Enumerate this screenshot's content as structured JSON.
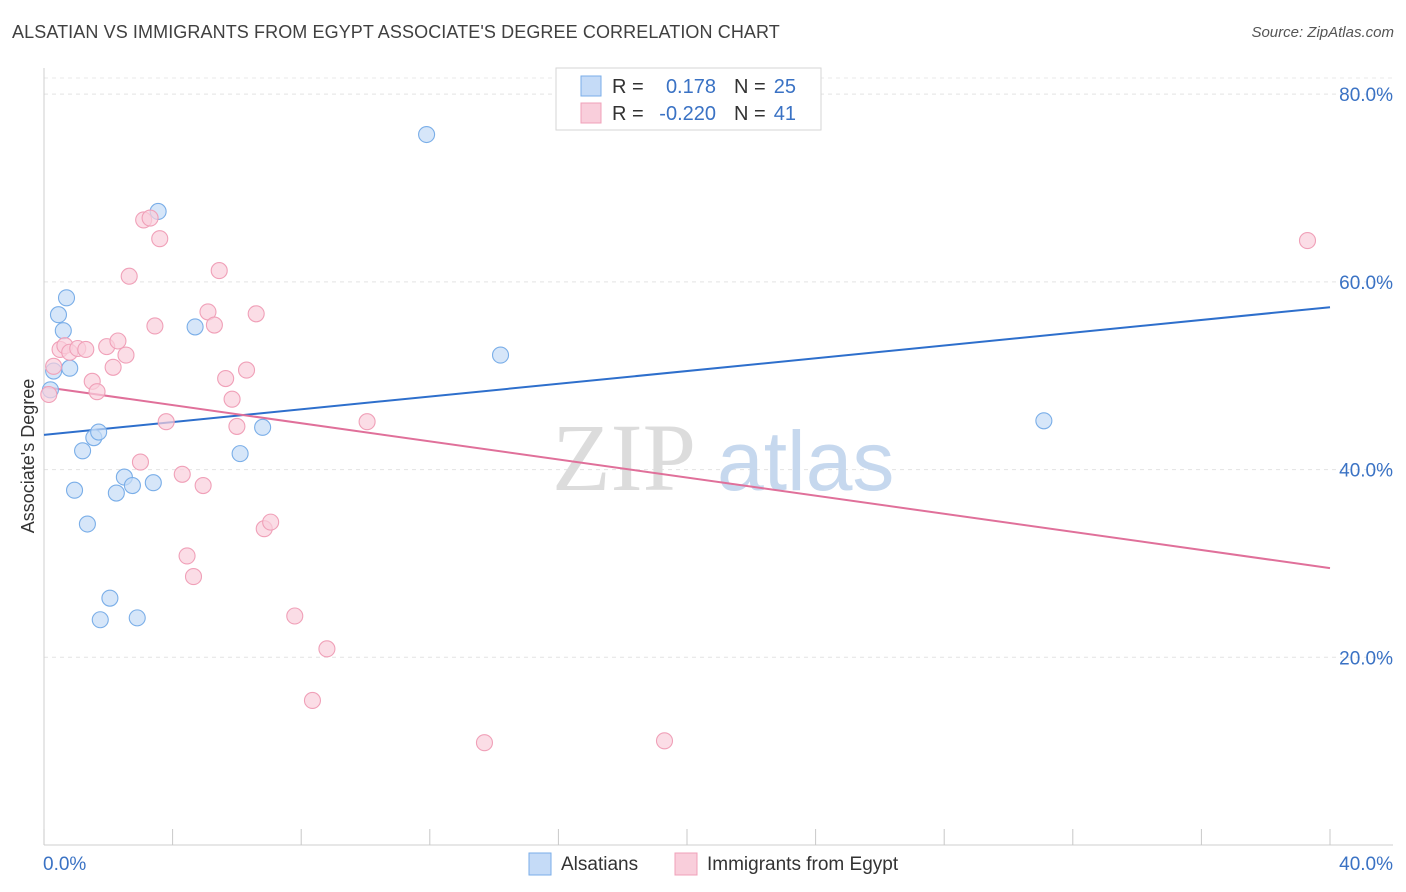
{
  "title": "ALSATIAN VS IMMIGRANTS FROM EGYPT ASSOCIATE'S DEGREE CORRELATION CHART",
  "source": "Source: ZipAtlas.com",
  "watermark": {
    "zip": "ZIP",
    "atlas": "atlas"
  },
  "legend": {
    "rows": [
      {
        "r_label": "R =",
        "r_value": "0.178",
        "n_label": "N =",
        "n_value": "25"
      },
      {
        "r_label": "R =",
        "r_value": "-0.220",
        "n_label": "N =",
        "n_value": "41"
      }
    ]
  },
  "chart_data": {
    "type": "scatter",
    "title": "ALSATIAN VS IMMIGRANTS FROM EGYPT ASSOCIATE'S DEGREE CORRELATION CHART",
    "xlabel": "",
    "ylabel": "Associate's Degree",
    "xlim": [
      0,
      40
    ],
    "ylim": [
      0,
      83
    ],
    "x_tick_labels": [
      "0.0%",
      "40.0%"
    ],
    "y_ticks": [
      20,
      40,
      60,
      80
    ],
    "y_tick_labels": [
      "20.0%",
      "40.0%",
      "60.0%",
      "80.0%"
    ],
    "grid": true,
    "legend_position": "top-center",
    "series": [
      {
        "name": "Alsatians",
        "color": "#7aaee8",
        "fill": "#c5dbf7",
        "r": 0.178,
        "n": 25,
        "trend": {
          "x": [
            0,
            40
          ],
          "y": [
            43.7,
            57.3
          ],
          "color": "#2e6fcc"
        },
        "points": [
          [
            0.2,
            48.5
          ],
          [
            0.3,
            50.5
          ],
          [
            0.45,
            56.5
          ],
          [
            0.6,
            54.8
          ],
          [
            0.7,
            58.3
          ],
          [
            0.8,
            50.8
          ],
          [
            0.95,
            37.8
          ],
          [
            1.2,
            42.0
          ],
          [
            1.35,
            34.2
          ],
          [
            1.55,
            43.4
          ],
          [
            1.7,
            44.0
          ],
          [
            1.75,
            24.0
          ],
          [
            2.05,
            26.3
          ],
          [
            2.25,
            37.5
          ],
          [
            2.5,
            39.2
          ],
          [
            2.75,
            38.3
          ],
          [
            2.9,
            24.2
          ],
          [
            3.4,
            38.6
          ],
          [
            3.55,
            67.5
          ],
          [
            4.7,
            55.2
          ],
          [
            6.1,
            41.7
          ],
          [
            6.8,
            44.5
          ],
          [
            11.9,
            75.7
          ],
          [
            14.2,
            52.2
          ],
          [
            31.1,
            45.2
          ]
        ]
      },
      {
        "name": "Immigrants from Egypt",
        "color": "#f0a0b8",
        "fill": "#f9cedb",
        "r": -0.22,
        "n": 41,
        "trend": {
          "x": [
            0,
            40
          ],
          "y": [
            48.8,
            29.5
          ],
          "color": "#e0709a"
        },
        "points": [
          [
            0.15,
            48.0
          ],
          [
            0.3,
            51.0
          ],
          [
            0.5,
            52.8
          ],
          [
            0.65,
            53.2
          ],
          [
            0.8,
            52.5
          ],
          [
            1.05,
            52.9
          ],
          [
            1.3,
            52.8
          ],
          [
            1.5,
            49.4
          ],
          [
            1.65,
            48.3
          ],
          [
            1.95,
            53.1
          ],
          [
            2.15,
            50.9
          ],
          [
            2.3,
            53.7
          ],
          [
            2.55,
            52.2
          ],
          [
            2.65,
            60.6
          ],
          [
            3.0,
            40.8
          ],
          [
            3.1,
            66.6
          ],
          [
            3.3,
            66.8
          ],
          [
            3.45,
            55.3
          ],
          [
            3.6,
            64.6
          ],
          [
            3.8,
            45.1
          ],
          [
            4.3,
            39.5
          ],
          [
            4.45,
            30.8
          ],
          [
            4.65,
            28.6
          ],
          [
            4.95,
            38.3
          ],
          [
            5.1,
            56.8
          ],
          [
            5.3,
            55.4
          ],
          [
            5.45,
            61.2
          ],
          [
            5.65,
            49.7
          ],
          [
            5.85,
            47.5
          ],
          [
            6.0,
            44.6
          ],
          [
            6.3,
            50.6
          ],
          [
            6.6,
            56.6
          ],
          [
            6.85,
            33.7
          ],
          [
            7.05,
            34.4
          ],
          [
            7.8,
            24.4
          ],
          [
            8.8,
            20.9
          ],
          [
            8.35,
            15.4
          ],
          [
            10.05,
            45.1
          ],
          [
            13.7,
            10.9
          ],
          [
            19.3,
            11.1
          ],
          [
            39.3,
            64.4
          ]
        ]
      }
    ]
  }
}
